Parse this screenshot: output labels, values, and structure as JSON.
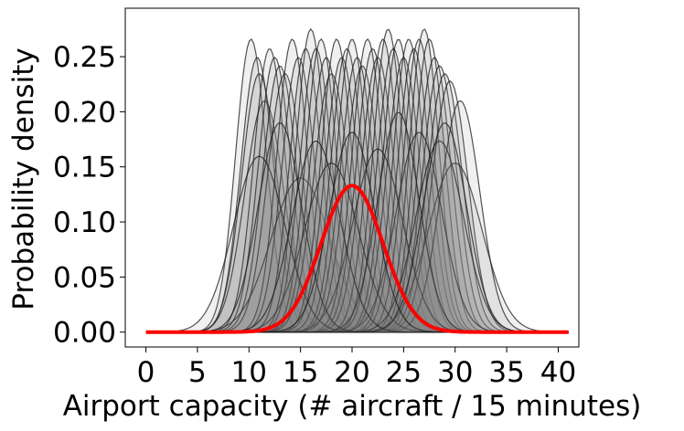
{
  "chart_data": {
    "type": "area",
    "xlabel": "Airport capacity (# aircraft / 15 minutes)",
    "ylabel": "Probability density",
    "xlim": [
      -2,
      42
    ],
    "ylim": [
      -0.0135,
      0.294
    ],
    "xticks": [
      0,
      5,
      10,
      15,
      20,
      25,
      30,
      35,
      40
    ],
    "xtick_labels": [
      "0",
      "5",
      "10",
      "15",
      "20",
      "25",
      "30",
      "35",
      "40"
    ],
    "yticks": [
      0.0,
      0.05,
      0.1,
      0.15,
      0.2,
      0.25
    ],
    "ytick_labels": [
      "0.00",
      "0.05",
      "0.10",
      "0.15",
      "0.20",
      "0.25"
    ],
    "grid": false,
    "legend": "none",
    "x_range": [
      0,
      41
    ],
    "background_curves": {
      "description": "many Gaussian densities (mean, std)",
      "fill_color": "#808080",
      "fill_opacity": 0.55,
      "line_color": "#1a1a1a",
      "params": [
        [
          10.2,
          1.5
        ],
        [
          10.8,
          1.6
        ],
        [
          11.0,
          1.7
        ],
        [
          11.5,
          1.9
        ],
        [
          12.0,
          1.55
        ],
        [
          12.5,
          1.6
        ],
        [
          13.0,
          1.65
        ],
        [
          13.5,
          1.7
        ],
        [
          14.2,
          1.5
        ],
        [
          14.8,
          1.6
        ],
        [
          15.0,
          2.85
        ],
        [
          15.5,
          1.55
        ],
        [
          16.0,
          1.45
        ],
        [
          16.5,
          1.55
        ],
        [
          17.0,
          1.5
        ],
        [
          17.5,
          1.6
        ],
        [
          18.0,
          1.7
        ],
        [
          18.5,
          1.5
        ],
        [
          19.0,
          1.6
        ],
        [
          19.5,
          1.55
        ],
        [
          20.0,
          1.5
        ],
        [
          20.5,
          1.6
        ],
        [
          21.0,
          1.65
        ],
        [
          21.5,
          1.5
        ],
        [
          22.0,
          1.55
        ],
        [
          22.5,
          1.6
        ],
        [
          23.0,
          1.5
        ],
        [
          23.5,
          1.45
        ],
        [
          24.0,
          1.55
        ],
        [
          24.5,
          1.5
        ],
        [
          25.0,
          1.6
        ],
        [
          25.5,
          1.5
        ],
        [
          26.0,
          1.55
        ],
        [
          26.5,
          1.5
        ],
        [
          27.0,
          1.45
        ],
        [
          27.5,
          1.5
        ],
        [
          28.0,
          1.6
        ],
        [
          28.5,
          1.65
        ],
        [
          29.0,
          1.7
        ],
        [
          29.5,
          1.75
        ],
        [
          30.0,
          2.6
        ],
        [
          30.5,
          1.9
        ],
        [
          26.5,
          2.2
        ],
        [
          22.5,
          2.4
        ],
        [
          18.0,
          2.6
        ],
        [
          11.0,
          2.5
        ],
        [
          28.5,
          2.3
        ],
        [
          13.0,
          2.1
        ],
        [
          24.5,
          2.0
        ],
        [
          16.5,
          2.3
        ],
        [
          29.0,
          2.1
        ],
        [
          20.0,
          2.2
        ]
      ]
    },
    "highlight_curve": {
      "mean": 20,
      "std": 3,
      "color": "#ff0000"
    }
  }
}
